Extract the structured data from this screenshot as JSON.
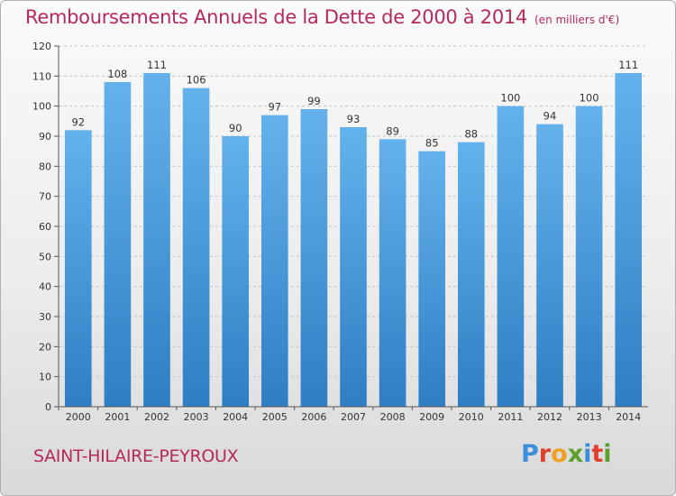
{
  "header": {
    "title": "Remboursements Annuels de la Dette de 2000 à 2014",
    "unit": "(en milliers d'€)"
  },
  "footer": {
    "commune": "SAINT-HILAIRE-PEYROUX",
    "logo": {
      "letters": [
        "P",
        "r",
        "o",
        "x",
        "i",
        "t",
        "i"
      ],
      "colors": [
        "#3a8fd8",
        "#e0402a",
        "#f0a020",
        "#5aa02c",
        "#3a8fd8",
        "#e0402a",
        "#5aa02c"
      ]
    }
  },
  "colors": {
    "bar_top": "#64b2ec",
    "bar_bottom": "#2f7ec4",
    "title": "#b5295e"
  },
  "chart_data": {
    "type": "bar",
    "title": "Remboursements Annuels de la Dette de 2000 à 2014",
    "xlabel": "",
    "ylabel": "",
    "categories": [
      "2000",
      "2001",
      "2002",
      "2003",
      "2004",
      "2005",
      "2006",
      "2007",
      "2008",
      "2009",
      "2010",
      "2011",
      "2012",
      "2013",
      "2014"
    ],
    "values": [
      92,
      108,
      111,
      106,
      90,
      97,
      99,
      93,
      89,
      85,
      88,
      100,
      94,
      100,
      111
    ],
    "ylim": [
      0,
      120
    ],
    "yticks": [
      0,
      10,
      20,
      30,
      40,
      50,
      60,
      70,
      80,
      90,
      100,
      110,
      120
    ],
    "grid": true,
    "data_labels": true
  }
}
